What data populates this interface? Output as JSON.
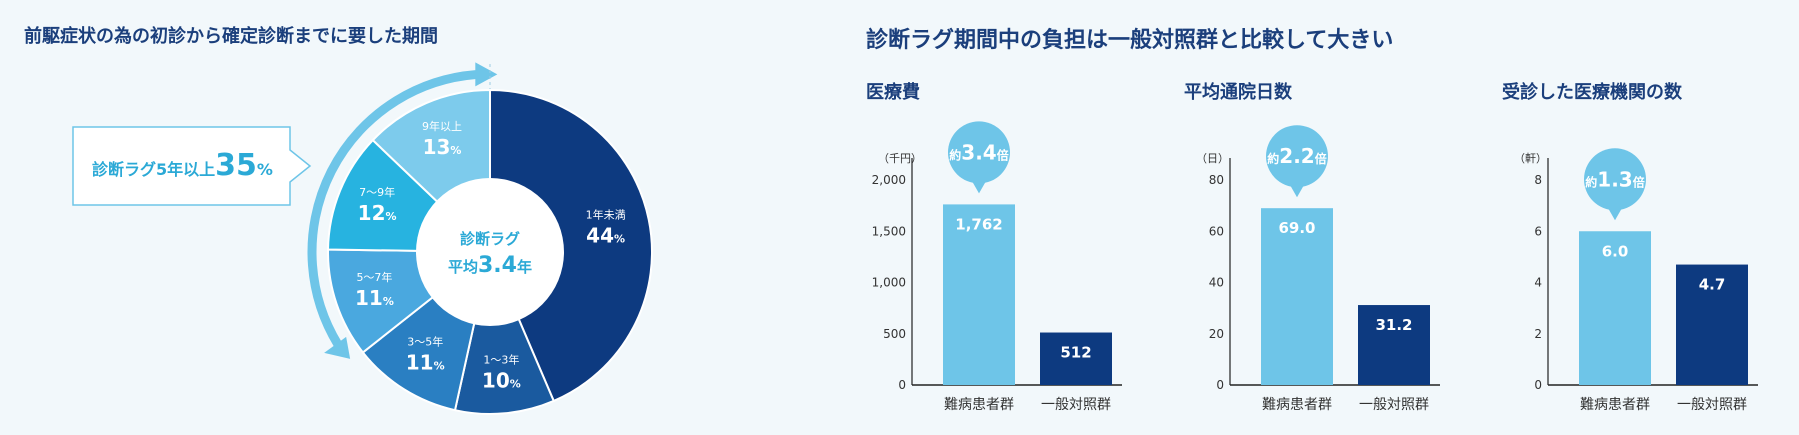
{
  "left_panel": {
    "title": "前駆症状の為の初診から確定診断までに要した期間"
  },
  "right_panel": {
    "title": "診断ラグ期間中の負担は一般対照群と比較して大きい"
  },
  "colors": {
    "navy": "#0d3a80",
    "light_blue": "#6ec5e8",
    "title_text": "#1b3f7c",
    "accent_text": "#2ba9d6",
    "slices": [
      "#0d3a80",
      "#1a5a9f",
      "#2a7fc2",
      "#4aa8df",
      "#27b3e0",
      "#7dcbec"
    ]
  },
  "chart_data": [
    {
      "type": "pie",
      "title": "前駆症状の為の初診から確定診断までに要した期間",
      "center_label": [
        "診断ラグ",
        "平均",
        "3.4",
        "年"
      ],
      "callout": {
        "text": "診断ラグ5年以上",
        "value": "35",
        "unit": "%"
      },
      "slices": [
        {
          "label": "1年未満",
          "value": 44,
          "unit": "%"
        },
        {
          "label": "1～3年",
          "value": 10,
          "unit": "%"
        },
        {
          "label": "3～5年",
          "value": 11,
          "unit": "%"
        },
        {
          "label": "5～7年",
          "value": 11,
          "unit": "%"
        },
        {
          "label": "7～9年",
          "value": 12,
          "unit": "%"
        },
        {
          "label": "9年以上",
          "value": 13,
          "unit": "%"
        }
      ]
    },
    {
      "type": "bar",
      "title": "医療費",
      "unit_label": "（千円）",
      "categories": [
        "難病患者群",
        "一般対照群"
      ],
      "values": [
        1762,
        512
      ],
      "value_labels": [
        "1,762",
        "512"
      ],
      "ylim": [
        0,
        2000
      ],
      "yticks": [
        0,
        500,
        1000,
        1500,
        2000
      ],
      "ytick_labels": [
        "0",
        "500",
        "1,000",
        "1,500",
        "2,000"
      ],
      "ratio": {
        "prefix": "約",
        "value": "3.4",
        "suffix": "倍"
      }
    },
    {
      "type": "bar",
      "title": "平均通院日数",
      "unit_label": "（日）",
      "categories": [
        "難病患者群",
        "一般対照群"
      ],
      "values": [
        69.0,
        31.2
      ],
      "value_labels": [
        "69.0",
        "31.2"
      ],
      "ylim": [
        0,
        80
      ],
      "yticks": [
        0,
        20,
        40,
        60,
        80
      ],
      "ytick_labels": [
        "0",
        "20",
        "40",
        "60",
        "80"
      ],
      "ratio": {
        "prefix": "約",
        "value": "2.2",
        "suffix": "倍"
      }
    },
    {
      "type": "bar",
      "title": "受診した医療機関の数",
      "unit_label": "（軒）",
      "categories": [
        "難病患者群",
        "一般対照群"
      ],
      "values": [
        6.0,
        4.7
      ],
      "value_labels": [
        "6.0",
        "4.7"
      ],
      "ylim": [
        0,
        8
      ],
      "yticks": [
        0,
        2,
        4,
        6,
        8
      ],
      "ytick_labels": [
        "0",
        "2",
        "4",
        "6",
        "8"
      ],
      "ratio": {
        "prefix": "約",
        "value": "1.3",
        "suffix": "倍"
      }
    }
  ]
}
